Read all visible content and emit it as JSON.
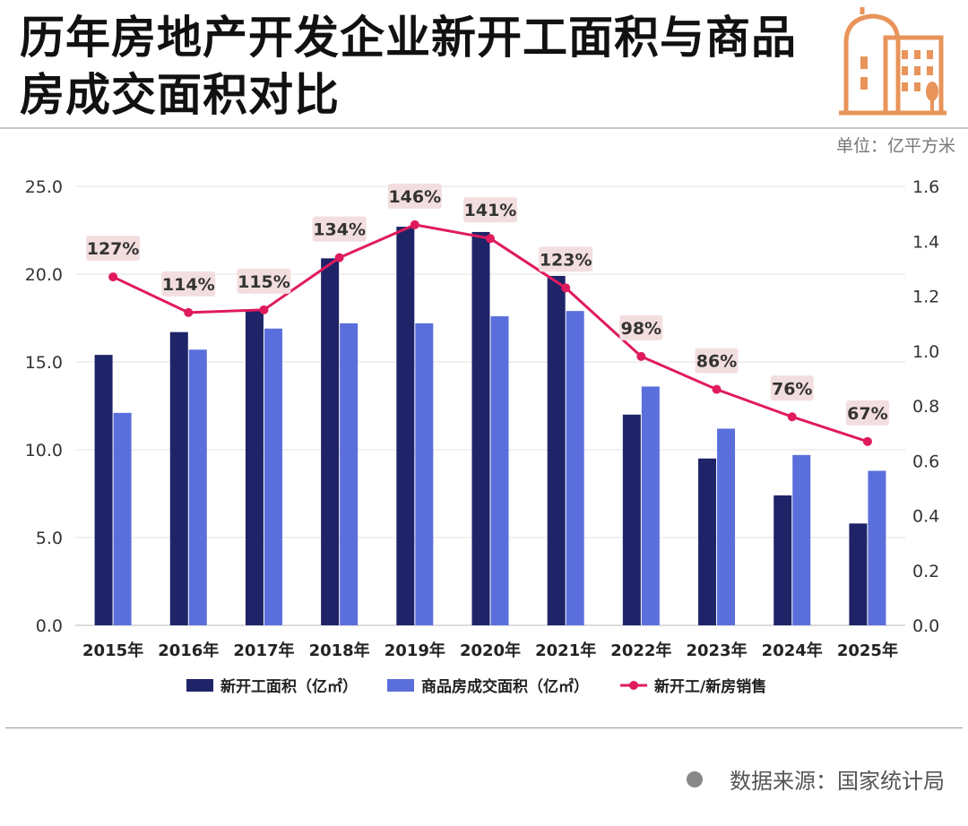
{
  "header": {
    "title": "历年房地产开发企业新开工面积与商品房成交面积对比",
    "unit": "单位：亿平方米"
  },
  "footer": {
    "source": "数据来源：国家统计局"
  },
  "colors": {
    "new_starts": "#1f2468",
    "sales": "#5a6fdc",
    "ratio": "#e01b5d",
    "label_bg": "#f3dedf",
    "logo": "#e8945a"
  },
  "icons": {
    "logo": "building-icon",
    "source_marker": "dot-icon"
  },
  "chart_data": {
    "type": "bar",
    "categories": [
      "2015年",
      "2016年",
      "2017年",
      "2018年",
      "2019年",
      "2020年",
      "2021年",
      "2022年",
      "2023年",
      "2024年",
      "2025年"
    ],
    "series": [
      {
        "name": "新开工面积（亿㎡）",
        "type": "bar",
        "axis": "left",
        "values": [
          15.4,
          16.7,
          17.9,
          20.9,
          22.7,
          22.4,
          19.9,
          12.0,
          9.5,
          7.4,
          5.8
        ]
      },
      {
        "name": "商品房成交面积（亿㎡）",
        "type": "bar",
        "axis": "left",
        "values": [
          12.1,
          15.7,
          16.9,
          17.2,
          17.2,
          17.6,
          17.9,
          13.6,
          11.2,
          9.7,
          8.8
        ]
      },
      {
        "name": "新开工/新房销售",
        "type": "line",
        "axis": "right",
        "values": [
          1.27,
          1.14,
          1.15,
          1.34,
          1.46,
          1.41,
          1.23,
          0.98,
          0.86,
          0.76,
          0.67
        ],
        "labels": [
          "127%",
          "114%",
          "115%",
          "134%",
          "146%",
          "141%",
          "123%",
          "98%",
          "86%",
          "76%",
          "67%"
        ]
      }
    ],
    "y_left": {
      "ylim": [
        0,
        25
      ],
      "ticks": [
        "0.0",
        "5.0",
        "10.0",
        "15.0",
        "20.0",
        "25.0"
      ]
    },
    "y_right": {
      "ylim": [
        0,
        1.6
      ],
      "ticks": [
        "0.0",
        "0.2",
        "0.4",
        "0.6",
        "0.8",
        "1.0",
        "1.2",
        "1.4",
        "1.6"
      ]
    },
    "grid": true,
    "legend_position": "bottom"
  }
}
